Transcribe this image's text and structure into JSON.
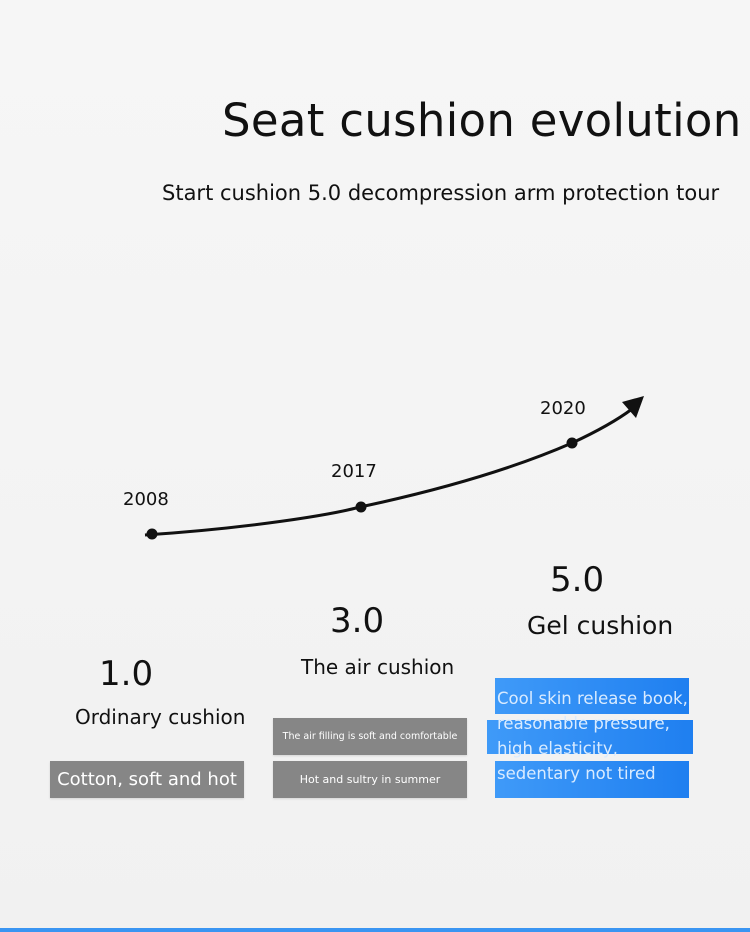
{
  "header": {
    "title": "Seat cushion evolution",
    "subtitle": "Start cushion 5.0 decompression arm protection tour"
  },
  "timeline": {
    "years": [
      "2008",
      "2017",
      "2020"
    ]
  },
  "stages": [
    {
      "version": "1.0",
      "name": "Ordinary cushion",
      "features": [
        "Cotton, soft and hot"
      ]
    },
    {
      "version": "3.0",
      "name": "The air cushion",
      "features": [
        "The air filling is soft and comfortable",
        "Hot and sultry in summer"
      ]
    },
    {
      "version": "5.0",
      "name": "Gel cushion",
      "features": [
        "Cool skin release book,",
        "reasonable pressure,",
        "high elasticity,",
        "sedentary not tired"
      ]
    }
  ],
  "colors": {
    "feature_box_gray": "#868686",
    "feature_box_blue": "#2a88f4",
    "accent_line": "#3a95f2"
  }
}
